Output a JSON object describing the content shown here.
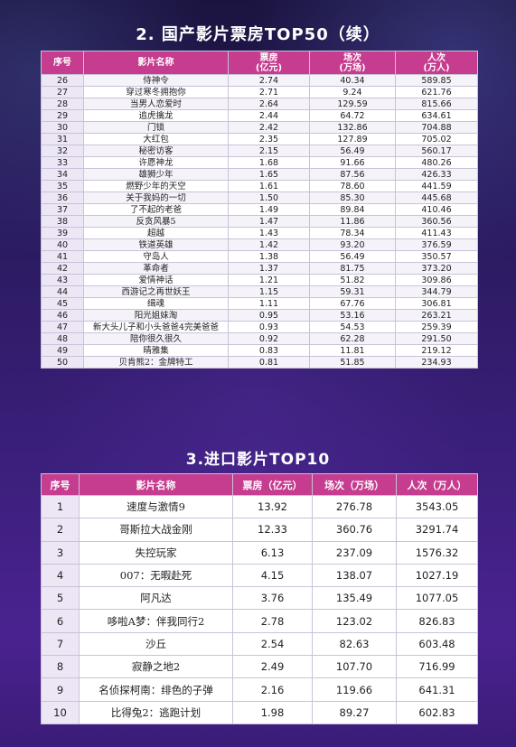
{
  "section1": {
    "title": "2. 国产影片票房TOP50（续）",
    "headers": [
      "序号",
      "影片名称",
      "票房\n(亿元)",
      "场次\n(万场)",
      "人次\n(万人)"
    ],
    "rows": [
      [
        "26",
        "侍神令",
        "2.74",
        "40.34",
        "589.85"
      ],
      [
        "27",
        "穿过寒冬拥抱你",
        "2.71",
        "9.24",
        "621.76"
      ],
      [
        "28",
        "当男人恋爱时",
        "2.64",
        "129.59",
        "815.66"
      ],
      [
        "29",
        "追虎擒龙",
        "2.44",
        "64.72",
        "634.61"
      ],
      [
        "30",
        "门锁",
        "2.42",
        "132.86",
        "704.88"
      ],
      [
        "31",
        "大红包",
        "2.35",
        "127.89",
        "705.02"
      ],
      [
        "32",
        "秘密访客",
        "2.15",
        "56.49",
        "560.17"
      ],
      [
        "33",
        "许愿神龙",
        "1.68",
        "91.66",
        "480.26"
      ],
      [
        "34",
        "雄狮少年",
        "1.65",
        "87.56",
        "426.33"
      ],
      [
        "35",
        "燃野少年的天空",
        "1.61",
        "78.60",
        "441.59"
      ],
      [
        "36",
        "关于我妈的一切",
        "1.50",
        "85.30",
        "445.68"
      ],
      [
        "37",
        "了不起的老爸",
        "1.49",
        "89.84",
        "410.46"
      ],
      [
        "38",
        "反贪风暴5",
        "1.47",
        "11.86",
        "360.56"
      ],
      [
        "39",
        "超越",
        "1.43",
        "78.34",
        "411.43"
      ],
      [
        "40",
        "铁道英雄",
        "1.42",
        "93.20",
        "376.59"
      ],
      [
        "41",
        "守岛人",
        "1.38",
        "56.49",
        "350.57"
      ],
      [
        "42",
        "革命者",
        "1.37",
        "81.75",
        "373.20"
      ],
      [
        "43",
        "爱情神话",
        "1.21",
        "51.82",
        "309.86"
      ],
      [
        "44",
        "西游记之再世妖王",
        "1.15",
        "59.31",
        "344.79"
      ],
      [
        "45",
        "缉魂",
        "1.11",
        "67.76",
        "306.81"
      ],
      [
        "46",
        "阳光姐妹淘",
        "0.95",
        "53.16",
        "263.21"
      ],
      [
        "47",
        "新大头儿子和小头爸爸4完美爸爸",
        "0.93",
        "54.53",
        "259.39"
      ],
      [
        "48",
        "陪你很久很久",
        "0.92",
        "62.28",
        "291.50"
      ],
      [
        "49",
        "晴雅集",
        "0.83",
        "11.81",
        "219.12"
      ],
      [
        "50",
        "贝肯熊2：金牌特工",
        "0.81",
        "51.85",
        "234.93"
      ]
    ]
  },
  "section2": {
    "title": "3.进口影片TOP10",
    "headers": [
      "序号",
      "影片名称",
      "票房（亿元）",
      "场次（万场）",
      "人次（万人）"
    ],
    "rows": [
      [
        "1",
        "速度与激情9",
        "13.92",
        "276.78",
        "3543.05"
      ],
      [
        "2",
        "哥斯拉大战金刚",
        "12.33",
        "360.76",
        "3291.74"
      ],
      [
        "3",
        "失控玩家",
        "6.13",
        "237.09",
        "1576.32"
      ],
      [
        "4",
        "007：无暇赴死",
        "4.15",
        "138.07",
        "1027.19"
      ],
      [
        "5",
        "阿凡达",
        "3.76",
        "135.49",
        "1077.05"
      ],
      [
        "6",
        "哆啦A梦：伴我同行2",
        "2.78",
        "123.02",
        "826.83"
      ],
      [
        "7",
        "沙丘",
        "2.54",
        "82.63",
        "603.48"
      ],
      [
        "8",
        "寂静之地2",
        "2.49",
        "107.70",
        "716.99"
      ],
      [
        "9",
        "名侦探柯南：绯色的子弹",
        "2.16",
        "119.66",
        "641.31"
      ],
      [
        "10",
        "比得兔2：逃跑计划",
        "1.98",
        "89.27",
        "602.83"
      ]
    ]
  }
}
